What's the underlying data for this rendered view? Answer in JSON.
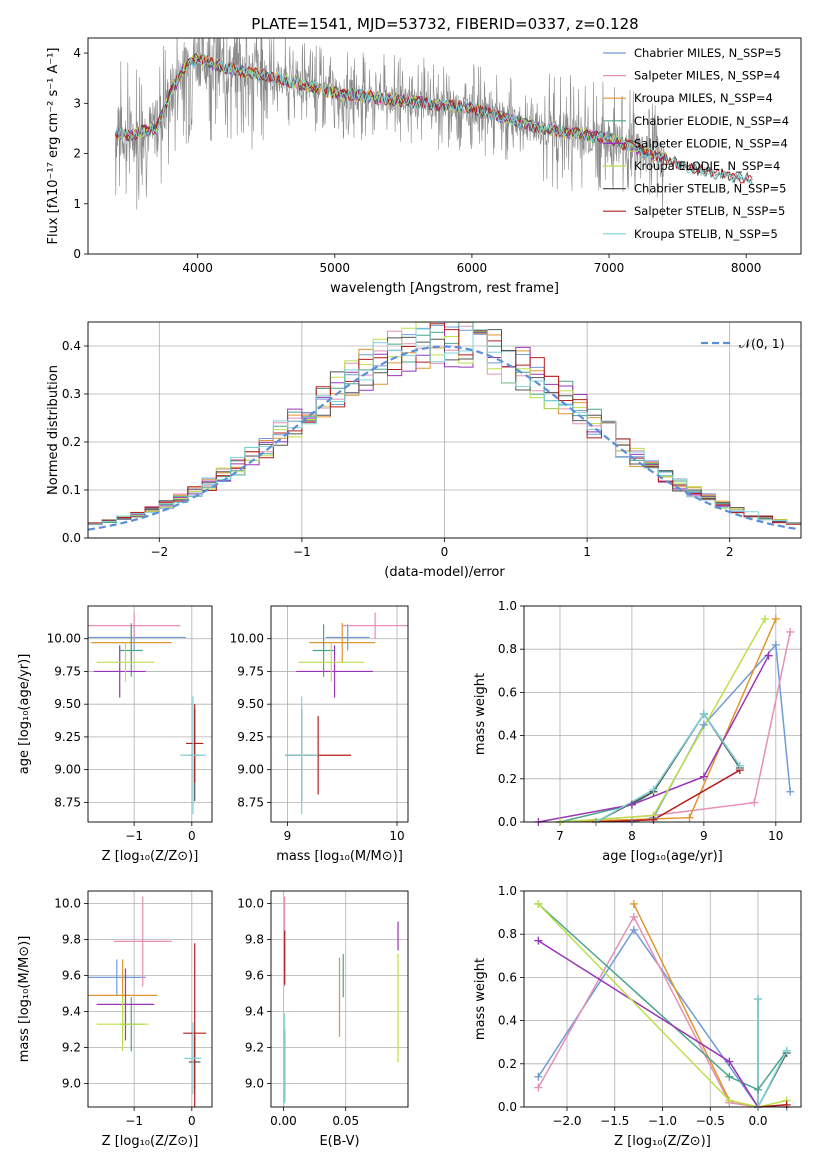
{
  "figure": {
    "title": "PLATE=1541, MJD=53732, FIBERID=0337, z=0.128",
    "palette": {
      "Chabrier MILES": "#6f9bd8",
      "Salpeter MILES": "#e78fb7",
      "Kroupa MILES": "#e0962f",
      "Chabrier ELODIE": "#4aa58c",
      "Salpeter ELODIE": "#9a35b8",
      "Kroupa ELODIE": "#bce04a",
      "Chabrier STELIB": "#555555",
      "Salpeter STELIB": "#b51e1e",
      "Kroupa STELIB": "#7fd4d9",
      "Data": "#888888",
      "Gaussian": "#5b8fd9"
    }
  },
  "chart_data": [
    {
      "id": "spectrum",
      "type": "line",
      "title": "PLATE=1541, MJD=53732, FIBERID=0337, z=0.128",
      "xlabel": "wavelength [Angstrom, rest frame]",
      "ylabel": "Flux [fλ10⁻¹⁷ erg cm⁻² s⁻¹ A⁻¹]",
      "xlim": [
        3200,
        8400
      ],
      "ylim": [
        0,
        4.3
      ],
      "xticks": [
        "4000",
        "5000",
        "6000",
        "7000",
        "8000"
      ],
      "yticks": [
        "0",
        "1",
        "2",
        "3",
        "4"
      ],
      "legend_position": "top-right",
      "legend": [
        "Chabrier MILES, N_SSP=5",
        "Salpeter MILES, N_SSP=4",
        "Kroupa MILES, N_SSP=4",
        "Chabrier ELODIE, N_SSP=4",
        "Salpeter ELODIE, N_SSP=4",
        "Kroupa ELODIE, N_SSP=4",
        "Chabrier STELIB, N_SSP=5",
        "Salpeter STELIB, N_SSP=5",
        "Kroupa STELIB, N_SSP=5"
      ],
      "model_continuum": {
        "x": [
          3400,
          3500,
          3600,
          3700,
          3800,
          3900,
          4000,
          4200,
          4500,
          4800,
          5000,
          5500,
          6000,
          6500,
          7000,
          7400,
          7600,
          8000
        ],
        "y": [
          2.4,
          2.35,
          2.45,
          2.5,
          3.2,
          3.7,
          3.9,
          3.7,
          3.55,
          3.35,
          3.2,
          3.05,
          2.9,
          2.5,
          2.3,
          1.9,
          1.7,
          1.5
        ]
      },
      "grid": false
    },
    {
      "id": "residual-distribution",
      "type": "bar",
      "xlabel": "(data-model)/error",
      "ylabel": "Normed distribution",
      "xlim": [
        -2.5,
        2.5
      ],
      "ylim": [
        0,
        0.45
      ],
      "xticks": [
        "−2",
        "−1",
        "0",
        "1",
        "2"
      ],
      "yticks": [
        "0.0",
        "0.1",
        "0.2",
        "0.3",
        "0.4"
      ],
      "legend_position": "top-right",
      "legend": [
        "𝒩(0, 1)"
      ],
      "bin_width": 0.1,
      "grid": true
    },
    {
      "id": "age-vs-Z",
      "type": "scatter",
      "xlabel": "Z [log₁₀(Z/Z⊙)]",
      "ylabel": "age  [log₁₀(age/yr)]",
      "xlim": [
        -1.8,
        0.35
      ],
      "ylim": [
        8.6,
        10.25
      ],
      "xticks": [
        "−1",
        "0"
      ],
      "yticks": [
        "8.75",
        "9.00",
        "9.25",
        "9.50",
        "9.75",
        "10.00"
      ],
      "grid": true,
      "series": [
        {
          "name": "Chabrier MILES",
          "x": -1.0,
          "y": 10.01,
          "xerr": 0.9,
          "yerr": 0.1
        },
        {
          "name": "Salpeter MILES",
          "x": -1.0,
          "y": 10.1,
          "xerr": 0.8,
          "yerr": 0.1
        },
        {
          "name": "Kroupa MILES",
          "x": -1.05,
          "y": 9.97,
          "xerr": 0.7,
          "yerr": 0.15
        },
        {
          "name": "Chabrier ELODIE",
          "x": -1.05,
          "y": 9.91,
          "xerr": 0.2,
          "yerr": 0.2
        },
        {
          "name": "Salpeter ELODIE",
          "x": -1.25,
          "y": 9.75,
          "xerr": 0.45,
          "yerr": 0.2
        },
        {
          "name": "Kroupa ELODIE",
          "x": -1.15,
          "y": 9.82,
          "xerr": 0.5,
          "yerr": 0.15
        },
        {
          "name": "Chabrier STELIB",
          "x": 0.05,
          "y": 9.11,
          "xerr": 0.1,
          "yerr": 0.35
        },
        {
          "name": "Salpeter STELIB",
          "x": 0.05,
          "y": 9.2,
          "xerr": 0.15,
          "yerr": 0.3
        },
        {
          "name": "Kroupa STELIB",
          "x": 0.02,
          "y": 9.11,
          "xerr": 0.22,
          "yerr": 0.45
        }
      ]
    },
    {
      "id": "age-vs-mass",
      "type": "scatter",
      "xlabel": "mass [log₁₀(M/M⊙)]",
      "ylabel": "",
      "xlim": [
        8.85,
        10.1
      ],
      "ylim": [
        8.6,
        10.25
      ],
      "xticks": [
        "9",
        "10"
      ],
      "yticks": [
        "8.75",
        "9.00",
        "9.25",
        "9.50",
        "9.75",
        "10.00"
      ],
      "grid": true,
      "series": [
        {
          "name": "Chabrier MILES",
          "x": 9.55,
          "y": 10.01,
          "xerr": 0.2,
          "yerr": 0.1
        },
        {
          "name": "Salpeter MILES",
          "x": 9.8,
          "y": 10.1,
          "xerr": 0.3,
          "yerr": 0.1
        },
        {
          "name": "Kroupa MILES",
          "x": 9.5,
          "y": 9.97,
          "xerr": 0.3,
          "yerr": 0.15
        },
        {
          "name": "Chabrier ELODIE",
          "x": 9.33,
          "y": 9.91,
          "xerr": 0.1,
          "yerr": 0.2
        },
        {
          "name": "Salpeter ELODIE",
          "x": 9.43,
          "y": 9.75,
          "xerr": 0.35,
          "yerr": 0.2
        },
        {
          "name": "Kroupa ELODIE",
          "x": 9.4,
          "y": 9.82,
          "xerr": 0.3,
          "yerr": 0.15
        },
        {
          "name": "Chabrier STELIB",
          "x": 9.13,
          "y": 9.11,
          "xerr": 0.1,
          "yerr": 0.35
        },
        {
          "name": "Salpeter STELIB",
          "x": 9.28,
          "y": 9.11,
          "xerr": 0.3,
          "yerr": 0.3
        },
        {
          "name": "Kroupa STELIB",
          "x": 9.13,
          "y": 9.11,
          "xerr": 0.15,
          "yerr": 0.45
        }
      ]
    },
    {
      "id": "massweight-vs-age",
      "type": "line",
      "xlabel": "age  [log₁₀(age/yr)]",
      "ylabel": "mass weight",
      "xlim": [
        6.5,
        10.35
      ],
      "ylim": [
        0,
        1.0
      ],
      "xticks": [
        "7",
        "8",
        "9",
        "10"
      ],
      "yticks": [
        "0.0",
        "0.2",
        "0.4",
        "0.6",
        "0.8",
        "1.0"
      ],
      "grid": true,
      "series": [
        {
          "name": "Chabrier MILES",
          "x": [
            7.0,
            8.0,
            8.3,
            9.0,
            10.0,
            10.2
          ],
          "y": [
            0.0,
            0.0,
            0.02,
            0.45,
            0.82,
            0.14
          ]
        },
        {
          "name": "Salpeter MILES",
          "x": [
            7.0,
            8.3,
            9.7,
            10.2
          ],
          "y": [
            0.0,
            0.03,
            0.09,
            0.88
          ]
        },
        {
          "name": "Kroupa MILES",
          "x": [
            7.0,
            8.8,
            10.0
          ],
          "y": [
            0.0,
            0.02,
            0.94
          ]
        },
        {
          "name": "Chabrier ELODIE",
          "x": [
            7.0,
            8.0,
            8.3,
            9.0,
            9.5
          ],
          "y": [
            0.0,
            0.08,
            0.14,
            0.5,
            0.26
          ]
        },
        {
          "name": "Salpeter ELODIE",
          "x": [
            6.7,
            8.0,
            9.0,
            9.9
          ],
          "y": [
            0.0,
            0.08,
            0.21,
            0.77
          ]
        },
        {
          "name": "Kroupa ELODIE",
          "x": [
            7.0,
            8.3,
            9.85
          ],
          "y": [
            0.0,
            0.03,
            0.94
          ]
        },
        {
          "name": "Chabrier STELIB",
          "x": [
            7.5,
            8.3,
            9.0,
            9.5
          ],
          "y": [
            0.0,
            0.14,
            0.5,
            0.25
          ]
        },
        {
          "name": "Salpeter STELIB",
          "x": [
            7.5,
            8.3,
            9.5
          ],
          "y": [
            0.0,
            0.01,
            0.24
          ]
        },
        {
          "name": "Kroupa STELIB",
          "x": [
            7.5,
            8.3,
            9.0,
            9.5
          ],
          "y": [
            0.0,
            0.15,
            0.5,
            0.26
          ]
        }
      ]
    },
    {
      "id": "mass-vs-Z",
      "type": "scatter",
      "xlabel": "Z [log₁₀(Z/Z⊙)]",
      "ylabel": "mass [log₁₀(M/M⊙)]",
      "xlim": [
        -1.8,
        0.35
      ],
      "ylim": [
        8.87,
        10.07
      ],
      "xticks": [
        "−1",
        "0"
      ],
      "yticks": [
        "9.0",
        "9.2",
        "9.4",
        "9.6",
        "9.8",
        "10.0"
      ],
      "grid": true,
      "series": [
        {
          "name": "Chabrier MILES",
          "x": -1.3,
          "y": 9.59,
          "xerr": 0.5,
          "yerr": 0.1
        },
        {
          "name": "Salpeter MILES",
          "x": -0.85,
          "y": 9.79,
          "xerr": 0.5,
          "yerr": 0.25
        },
        {
          "name": "Kroupa MILES",
          "x": -1.2,
          "y": 9.49,
          "xerr": 0.6,
          "yerr": 0.2
        },
        {
          "name": "Chabrier ELODIE",
          "x": -1.05,
          "y": 9.33,
          "xerr": 0.2,
          "yerr": 0.15
        },
        {
          "name": "Salpeter ELODIE",
          "x": -1.15,
          "y": 9.44,
          "xerr": 0.5,
          "yerr": 0.2
        },
        {
          "name": "Kroupa ELODIE",
          "x": -1.2,
          "y": 9.33,
          "xerr": 0.45,
          "yerr": 0.15
        },
        {
          "name": "Chabrier STELIB",
          "x": 0.05,
          "y": 9.12,
          "xerr": 0.1,
          "yerr": 0.15
        },
        {
          "name": "Salpeter STELIB",
          "x": 0.05,
          "y": 9.28,
          "xerr": 0.2,
          "yerr": 0.5
        },
        {
          "name": "Kroupa STELIB",
          "x": 0.02,
          "y": 9.14,
          "xerr": 0.15,
          "yerr": 0.2
        }
      ]
    },
    {
      "id": "mass-vs-EBV",
      "type": "scatter",
      "xlabel": "E(B-V)",
      "ylabel": "",
      "xlim": [
        -0.01,
        0.1
      ],
      "ylim": [
        8.87,
        10.07
      ],
      "xticks": [
        "0.00",
        "0.05"
      ],
      "yticks": [
        "9.0",
        "9.2",
        "9.4",
        "9.6",
        "9.8",
        "10.0"
      ],
      "grid": true,
      "series": [
        {
          "name": "Chabrier MILES",
          "x": 0.001,
          "y": 9.75,
          "xerr": 0.0,
          "yerr": 0.1
        },
        {
          "name": "Salpeter MILES",
          "x": 0.001,
          "y": 9.79,
          "xerr": 0.0,
          "yerr": 0.25
        },
        {
          "name": "Kroupa MILES",
          "x": 0.045,
          "y": 9.48,
          "xerr": 0.0,
          "yerr": 0.22
        },
        {
          "name": "Chabrier ELODIE",
          "x": 0.048,
          "y": 9.6,
          "xerr": 0.0,
          "yerr": 0.12
        },
        {
          "name": "Salpeter ELODIE",
          "x": 0.092,
          "y": 9.82,
          "xerr": 0.0,
          "yerr": 0.08
        },
        {
          "name": "Kroupa ELODIE",
          "x": 0.092,
          "y": 9.42,
          "xerr": 0.0,
          "yerr": 0.3
        },
        {
          "name": "Chabrier STELIB",
          "x": 0.001,
          "y": 9.1,
          "xerr": 0.0,
          "yerr": 0.2
        },
        {
          "name": "Salpeter STELIB",
          "x": 0.001,
          "y": 9.7,
          "xerr": 0.0,
          "yerr": 0.15
        },
        {
          "name": "Kroupa STELIB",
          "x": 0.001,
          "y": 9.14,
          "xerr": 0.0,
          "yerr": 0.25
        }
      ]
    },
    {
      "id": "massweight-vs-Z",
      "type": "line",
      "xlabel": "Z [log₁₀(Z/Z⊙)]",
      "ylabel": "mass weight",
      "xlim": [
        -2.45,
        0.45
      ],
      "ylim": [
        0,
        1.0
      ],
      "xticks": [
        "−2.0",
        "−1.5",
        "−1.0",
        "−0.5",
        "0.0"
      ],
      "yticks": [
        "0.0",
        "0.2",
        "0.4",
        "0.6",
        "0.8",
        "1.0"
      ],
      "grid": true,
      "series": [
        {
          "name": "Chabrier MILES",
          "x": [
            -2.3,
            -1.3,
            0.0,
            0.3
          ],
          "y": [
            0.14,
            0.82,
            0.0,
            0.0
          ]
        },
        {
          "name": "Salpeter MILES",
          "x": [
            -2.3,
            -1.3,
            -0.3,
            0.0
          ],
          "y": [
            0.09,
            0.88,
            0.02,
            0.0
          ]
        },
        {
          "name": "Kroupa MILES",
          "x": [
            -1.3,
            -0.3,
            0.0
          ],
          "y": [
            0.94,
            0.03,
            0.0
          ]
        },
        {
          "name": "Chabrier ELODIE",
          "x": [
            -2.3,
            -0.3,
            0.0,
            0.3
          ],
          "y": [
            0.94,
            0.14,
            0.08,
            0.26
          ]
        },
        {
          "name": "Salpeter ELODIE",
          "x": [
            -2.3,
            -0.3,
            0.0
          ],
          "y": [
            0.77,
            0.21,
            0.0
          ]
        },
        {
          "name": "Kroupa ELODIE",
          "x": [
            -2.3,
            -0.3,
            0.0,
            0.3
          ],
          "y": [
            0.94,
            0.03,
            0.0,
            0.03
          ]
        },
        {
          "name": "Chabrier STELIB",
          "x": [
            0.0,
            0.0,
            0.3
          ],
          "y": [
            0.5,
            0.0,
            0.25
          ]
        },
        {
          "name": "Salpeter STELIB",
          "x": [
            0.0,
            0.3
          ],
          "y": [
            0.0,
            0.01
          ]
        },
        {
          "name": "Kroupa STELIB",
          "x": [
            0.0,
            0.0,
            0.3
          ],
          "y": [
            0.5,
            0.0,
            0.26
          ]
        }
      ]
    }
  ]
}
